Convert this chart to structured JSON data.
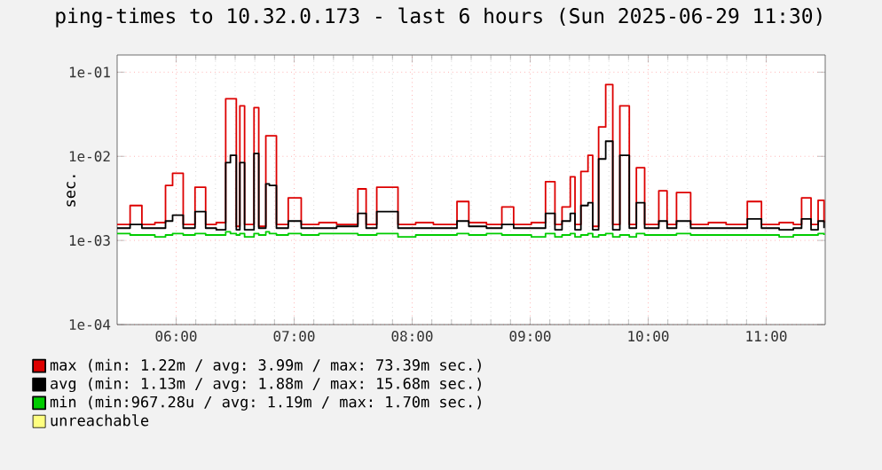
{
  "chart_data": {
    "type": "step",
    "title": "ping-times to 10.32.0.173 - last 6 hours (Sun 2025-06-29 11:30)",
    "ylabel": "sec.",
    "log": "y",
    "grid": true,
    "legend": "bottom",
    "line_style": "solid",
    "xlim": [
      5.5,
      11.5
    ],
    "xticks": [
      {
        "value": 6,
        "label": "06:00"
      },
      {
        "value": 7,
        "label": "07:00"
      },
      {
        "value": 8,
        "label": "08:00"
      },
      {
        "value": 9,
        "label": "09:00"
      },
      {
        "value": 10,
        "label": "10:00"
      },
      {
        "value": 11,
        "label": "11:00"
      }
    ],
    "ylim": [
      0.0001,
      0.16
    ],
    "yticks": [
      {
        "value": 0.0001,
        "label": "1e-04"
      },
      {
        "value": 0.001,
        "label": "1e-03"
      },
      {
        "value": 0.01,
        "label": "1e-02"
      },
      {
        "value": 0.1,
        "label": "1e-01"
      }
    ],
    "x": [
      5.5,
      5.61,
      5.71,
      5.82,
      5.91,
      5.97,
      6.06,
      6.16,
      6.25,
      6.34,
      6.42,
      6.46,
      6.51,
      6.54,
      6.58,
      6.66,
      6.7,
      6.76,
      6.79,
      6.85,
      6.95,
      7.06,
      7.21,
      7.36,
      7.54,
      7.61,
      7.7,
      7.75,
      7.88,
      8.03,
      8.18,
      8.38,
      8.48,
      8.63,
      8.76,
      8.86,
      9.01,
      9.13,
      9.21,
      9.27,
      9.34,
      9.38,
      9.43,
      9.49,
      9.53,
      9.58,
      9.64,
      9.7,
      9.76,
      9.84,
      9.9,
      9.97,
      10.09,
      10.16,
      10.24,
      10.36,
      10.51,
      10.66,
      10.84,
      10.96,
      11.11,
      11.23,
      11.3,
      11.38,
      11.44,
      11.49
    ],
    "series": [
      {
        "name": "max (min: 1.22m / avg: 3.99m / max: 73.39m sec.)",
        "color": "#dd0000",
        "values": [
          0.00155,
          0.0026,
          0.00155,
          0.00163,
          0.0045,
          0.0063,
          0.00155,
          0.0043,
          0.00155,
          0.00163,
          0.0483,
          0.0483,
          0.00147,
          0.0398,
          0.00155,
          0.0379,
          0.00147,
          0.0175,
          0.0175,
          0.00155,
          0.0032,
          0.00155,
          0.00163,
          0.00155,
          0.0041,
          0.00155,
          0.0043,
          0.0043,
          0.00155,
          0.00163,
          0.00155,
          0.0029,
          0.00163,
          0.00155,
          0.0025,
          0.00155,
          0.00163,
          0.005,
          0.00155,
          0.0025,
          0.0057,
          0.00155,
          0.0066,
          0.0103,
          0.00147,
          0.0223,
          0.0713,
          0.00155,
          0.0398,
          0.00155,
          0.0073,
          0.00155,
          0.0039,
          0.00155,
          0.0037,
          0.00155,
          0.00163,
          0.00155,
          0.0029,
          0.00155,
          0.00163,
          0.00155,
          0.0032,
          0.00155,
          0.003,
          0.00163
        ]
      },
      {
        "name": "avg (min: 1.13m / avg: 1.88m / max: 15.68m sec.)",
        "color": "#000000",
        "values": [
          0.0014,
          0.00155,
          0.0014,
          0.0014,
          0.0017,
          0.002,
          0.0014,
          0.0022,
          0.0014,
          0.00134,
          0.0084,
          0.0103,
          0.00134,
          0.0084,
          0.00134,
          0.0108,
          0.0014,
          0.0047,
          0.0045,
          0.0014,
          0.0017,
          0.0014,
          0.0014,
          0.00147,
          0.0021,
          0.0014,
          0.0022,
          0.0022,
          0.0014,
          0.0014,
          0.0014,
          0.0017,
          0.00147,
          0.0014,
          0.00155,
          0.0014,
          0.0014,
          0.0021,
          0.00134,
          0.0017,
          0.0021,
          0.00134,
          0.0026,
          0.0028,
          0.00134,
          0.0093,
          0.0151,
          0.00134,
          0.0103,
          0.0014,
          0.0028,
          0.0014,
          0.0017,
          0.0014,
          0.0017,
          0.0014,
          0.0014,
          0.0014,
          0.0018,
          0.0014,
          0.00134,
          0.0014,
          0.0018,
          0.00134,
          0.0017,
          0.0014
        ]
      },
      {
        "name": "min (min:967.28u / avg: 1.19m / max: 1.70m sec.)",
        "color": "#00cc00",
        "values": [
          0.00121,
          0.00116,
          0.00116,
          0.0011,
          0.00116,
          0.00121,
          0.00116,
          0.00121,
          0.00116,
          0.00116,
          0.00127,
          0.00121,
          0.00116,
          0.00121,
          0.0011,
          0.00121,
          0.00116,
          0.00127,
          0.00121,
          0.00116,
          0.00121,
          0.00116,
          0.00121,
          0.00121,
          0.00116,
          0.00116,
          0.00121,
          0.00121,
          0.0011,
          0.00116,
          0.00116,
          0.00121,
          0.00116,
          0.00121,
          0.00116,
          0.00116,
          0.0011,
          0.00121,
          0.0011,
          0.00116,
          0.00121,
          0.0011,
          0.00116,
          0.00121,
          0.0011,
          0.00116,
          0.00121,
          0.0011,
          0.00116,
          0.0011,
          0.00121,
          0.00116,
          0.00116,
          0.00116,
          0.00121,
          0.00116,
          0.00116,
          0.00116,
          0.00116,
          0.00116,
          0.0011,
          0.00116,
          0.00116,
          0.00116,
          0.00121,
          0.00116
        ]
      },
      {
        "name": "unreachable",
        "color": "#ffff80",
        "values": [
          null,
          null,
          null,
          null,
          null,
          null,
          null,
          null,
          null,
          null,
          null,
          null,
          null,
          null,
          null,
          null,
          null,
          null,
          null,
          null,
          null,
          null,
          null,
          null,
          null,
          null,
          null,
          null,
          null,
          null,
          null,
          null,
          null,
          null,
          null,
          null,
          null,
          null,
          null,
          null,
          null,
          null,
          null,
          null,
          null,
          null,
          null,
          null,
          null,
          null,
          null,
          null,
          null,
          null,
          null,
          null,
          null,
          null,
          null,
          null,
          null,
          null,
          null,
          null,
          null,
          null
        ]
      }
    ]
  }
}
